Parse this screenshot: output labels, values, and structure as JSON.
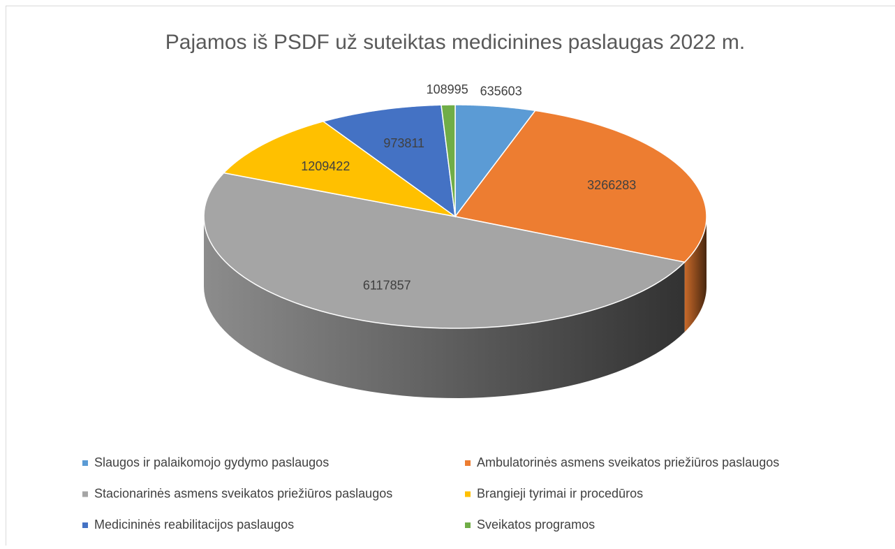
{
  "chart_data": {
    "type": "pie3d",
    "title": "Pajamos iš PSDF už suteiktas medicinines paslaugas 2022 m.",
    "categories": [
      "Slaugos ir palaikomojo gydymo paslaugos",
      "Ambulatorinės asmens sveikatos priežiūros paslaugos",
      "Stacionarinės asmens sveikatos priežiūros paslaugos",
      "Brangieji tyrimai ir procedūros",
      "Medicininės reabilitacijos paslaugos",
      "Sveikatos programos"
    ],
    "values": [
      635603,
      3266283,
      6117857,
      1209422,
      973811,
      108995
    ],
    "colors": [
      "#5b9bd5",
      "#ed7d31",
      "#a5a5a5",
      "#ffc000",
      "#4472c4",
      "#70ad47"
    ],
    "legend": "bottom"
  }
}
